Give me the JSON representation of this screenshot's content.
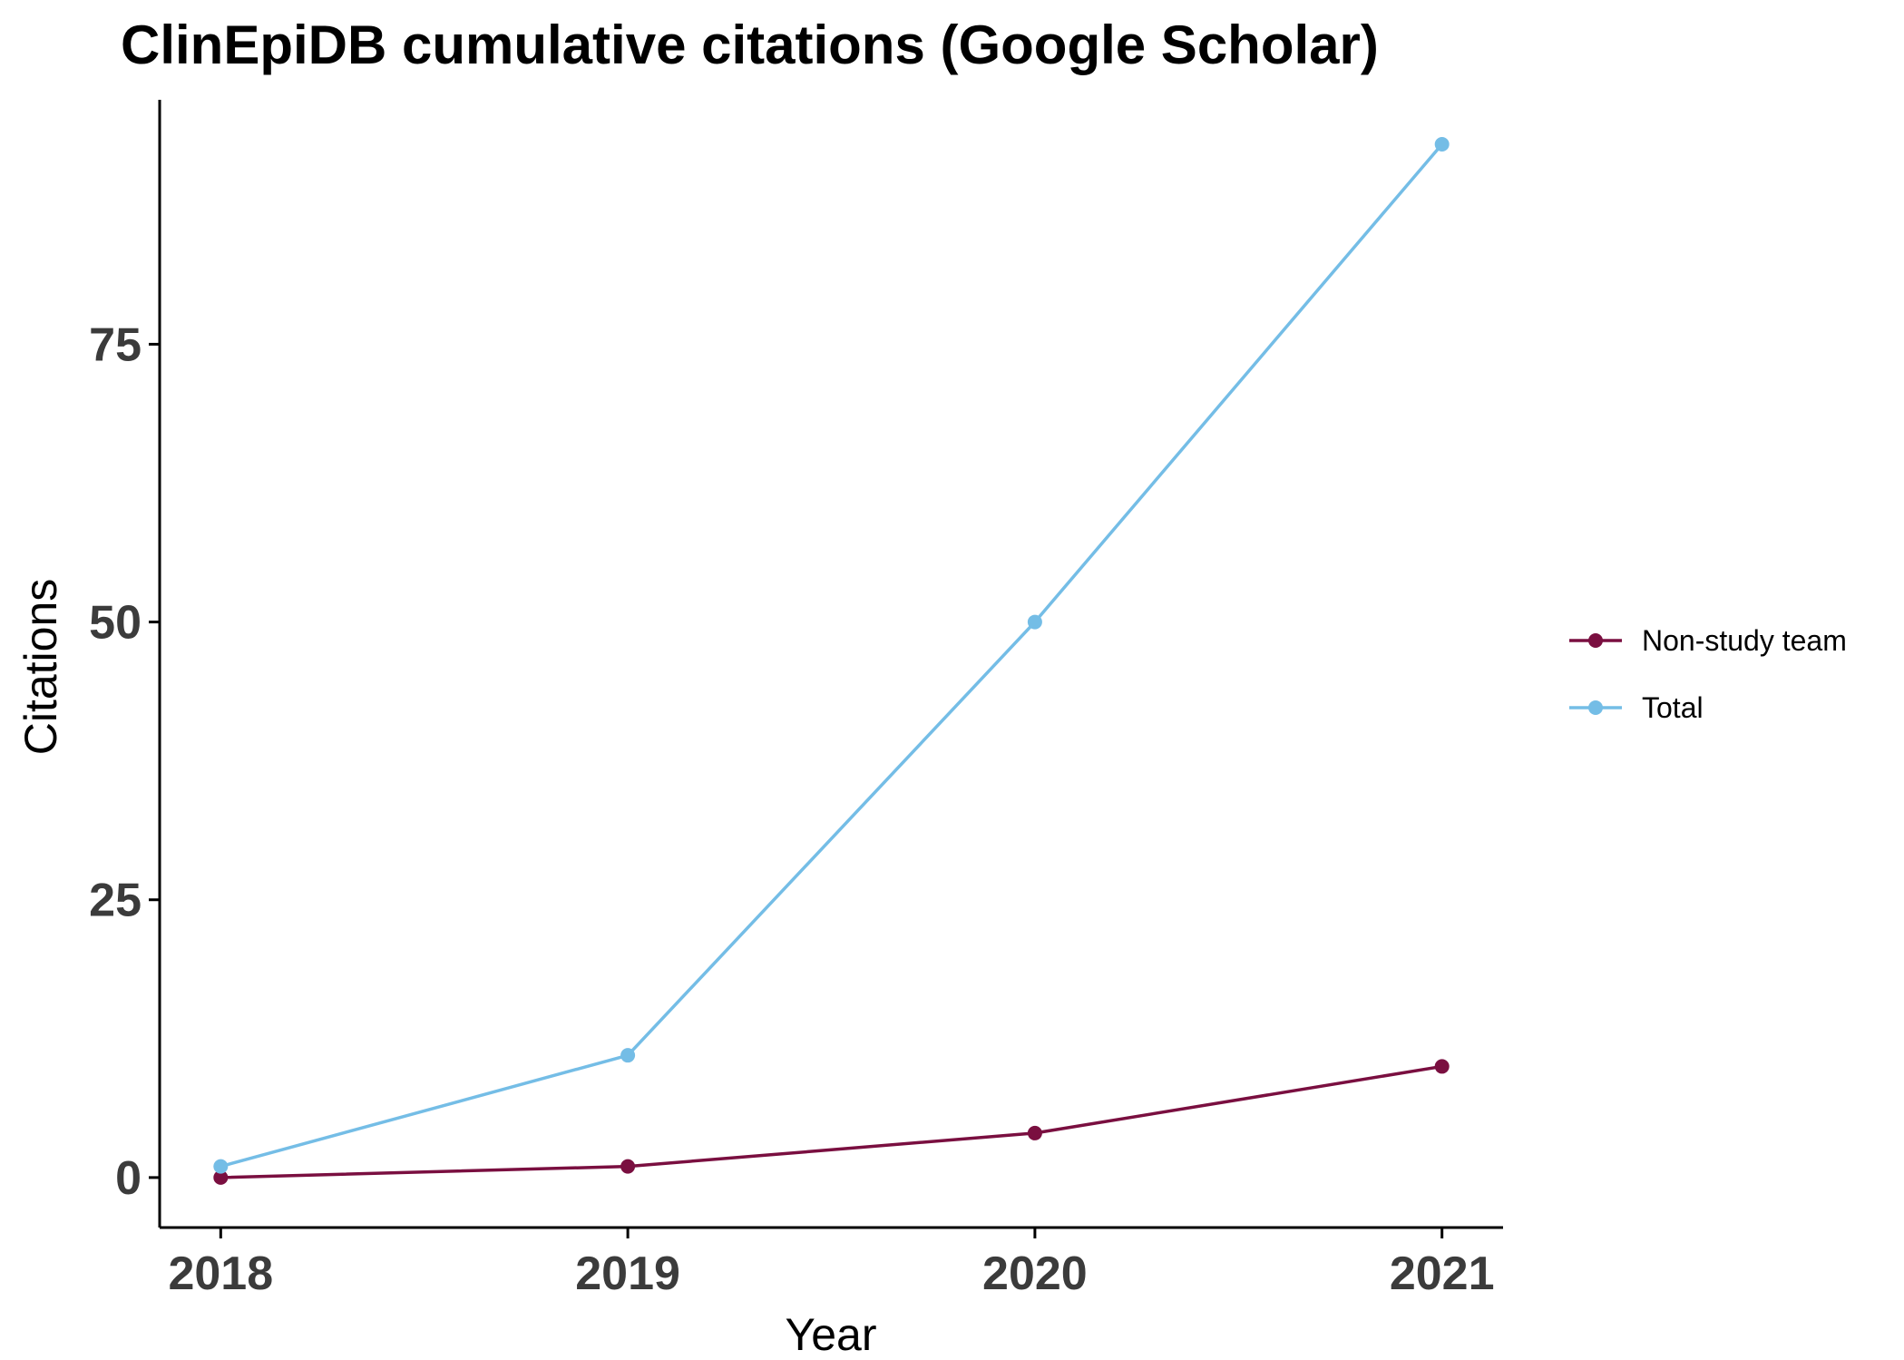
{
  "chart_data": {
    "type": "line",
    "title": "ClinEpiDB cumulative citations (Google Scholar)",
    "xlabel": "Year",
    "ylabel": "Citations",
    "x": [
      2018,
      2019,
      2020,
      2021
    ],
    "x_tick_labels": [
      "2018",
      "2019",
      "2020",
      "2021"
    ],
    "y_ticks": [
      0,
      25,
      50,
      75
    ],
    "y_tick_labels": [
      "0",
      "25",
      "50",
      "75"
    ],
    "xlim": [
      2017.85,
      2021.15
    ],
    "ylim": [
      -4.5,
      97
    ],
    "grid": false,
    "legend_position": "right",
    "series": [
      {
        "name": "Non-study team",
        "color": "#7a0f40",
        "values": [
          0,
          1,
          4,
          10
        ]
      },
      {
        "name": "Total",
        "color": "#74bde6",
        "values": [
          1,
          11,
          50,
          93
        ]
      }
    ]
  }
}
